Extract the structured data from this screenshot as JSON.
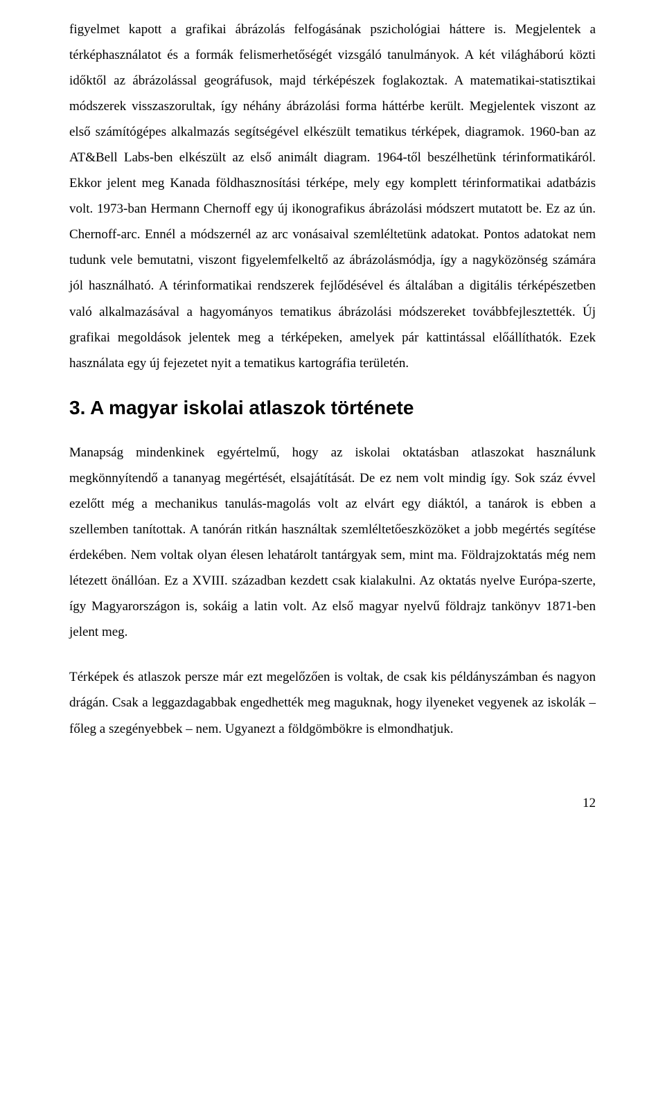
{
  "paragraph1": "figyelmet kapott a grafikai ábrázolás felfogásának pszichológiai háttere is. Megjelentek a térképhasználatot és a formák felismerhetőségét vizsgáló tanulmányok. A két világháború közti időktől az ábrázolással geográfusok, majd térképészek foglakoztak. A matematikai-statisztikai módszerek visszaszorultak, így néhány ábrázolási forma háttérbe került. Megjelentek viszont az első számítógépes alkalmazás segítségével elkészült tematikus térképek, diagramok. 1960-ban az AT&Bell Labs-ben elkészült az első animált diagram. 1964-től beszélhetünk térinformatikáról. Ekkor jelent meg Kanada földhasznosítási térképe, mely egy komplett térinformatikai adatbázis volt. 1973-ban Hermann Chernoff egy új ikonografikus ábrázolási módszert mutatott be. Ez az ún. Chernoff-arc. Ennél a módszernél az arc vonásaival szemléltetünk adatokat. Pontos adatokat nem tudunk vele bemutatni, viszont figyelemfelkeltő az ábrázolásmódja, így a nagyközönség számára jól használható. A térinformatikai rendszerek fejlődésével és általában a digitális térképészetben való alkalmazásával a hagyományos tematikus ábrázolási módszereket továbbfejlesztették. Új grafikai megoldások jelentek meg a térképeken, amelyek pár kattintással előállíthatók. Ezek használata egy új fejezetet nyit a tematikus kartográfia területén.",
  "heading": "3. A magyar iskolai atlaszok története",
  "paragraph2": "Manapság mindenkinek egyértelmű, hogy az iskolai oktatásban atlaszokat használunk megkönnyítendő a tananyag megértését, elsajátítását. De ez nem volt mindig így. Sok száz évvel ezelőtt még a mechanikus tanulás-magolás volt az elvárt egy diáktól, a tanárok is ebben a szellemben tanítottak. A tanórán ritkán használtak szemléltetőeszközöket a jobb megértés segítése érdekében. Nem voltak olyan élesen lehatárolt tantárgyak sem, mint ma. Földrajzoktatás még nem létezett önállóan. Ez a XVIII. században kezdett csak kialakulni. Az oktatás nyelve Európa-szerte, így Magyarországon is, sokáig a latin volt. Az első magyar nyelvű földrajz tankönyv 1871-ben jelent meg.",
  "paragraph3": "Térképek és atlaszok persze már ezt megelőzően is voltak, de csak kis példányszámban és nagyon drágán. Csak a leggazdagabbak engedhették meg maguknak, hogy ilyeneket vegyenek az iskolák – főleg a szegényebbek – nem. Ugyanezt a földgömbökre is elmondhatjuk.",
  "pageNumber": "12"
}
